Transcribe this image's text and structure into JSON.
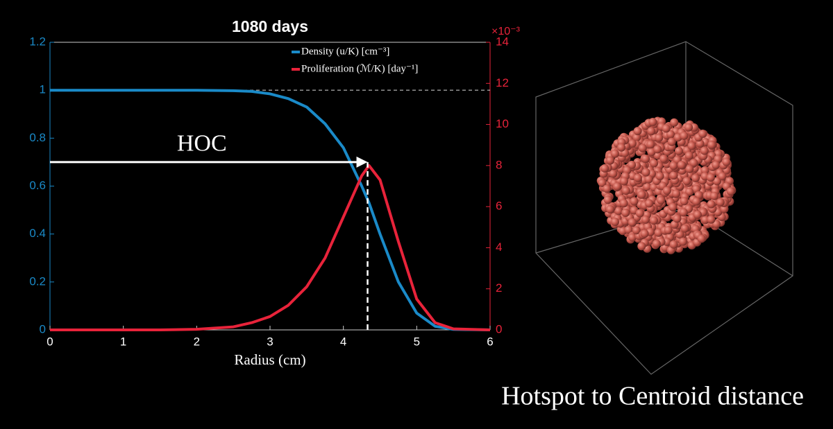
{
  "chart_data": {
    "type": "line",
    "title": "1080 days",
    "x_label": "Radius (cm)",
    "x": [
      0,
      0.5,
      1,
      1.5,
      2,
      2.5,
      2.75,
      3,
      3.25,
      3.5,
      3.75,
      4,
      4.25,
      4.35,
      4.5,
      4.75,
      5,
      5.25,
      5.5,
      6
    ],
    "series": [
      {
        "name": "Density (u/K) [cm⁻³]",
        "color": "#1a8ac8",
        "axis": "y",
        "values": [
          1,
          1,
          1,
          1,
          1,
          0.998,
          0.995,
          0.985,
          0.965,
          0.93,
          0.86,
          0.76,
          0.6,
          0.53,
          0.4,
          0.2,
          0.07,
          0.015,
          0.002,
          0
        ]
      },
      {
        "name": "Proliferation (ℳ/K) [day⁻¹]",
        "color": "#e8233a",
        "axis": "y2",
        "values": [
          0,
          0,
          0,
          0,
          0.03,
          0.15,
          0.35,
          0.65,
          1.2,
          2.1,
          3.5,
          5.5,
          7.5,
          8.0,
          7.3,
          4.3,
          1.5,
          0.35,
          0.05,
          0
        ]
      }
    ],
    "xlim": [
      0,
      6
    ],
    "xticks": [
      0,
      1,
      2,
      3,
      4,
      5,
      6
    ],
    "ylim": [
      0,
      1.2
    ],
    "yticks": [
      0,
      0.2,
      0.4,
      0.6,
      0.8,
      1,
      1.2
    ],
    "y2lim": [
      0,
      14
    ],
    "y2ticks": [
      0,
      2,
      4,
      6,
      8,
      10,
      12,
      14
    ],
    "y2_exponent": "×10⁻³",
    "reference_line": 1,
    "hoc": {
      "label": "HOC",
      "x": 4.33,
      "y": 0.7
    }
  },
  "caption": "Hotspot to Centroid distance"
}
